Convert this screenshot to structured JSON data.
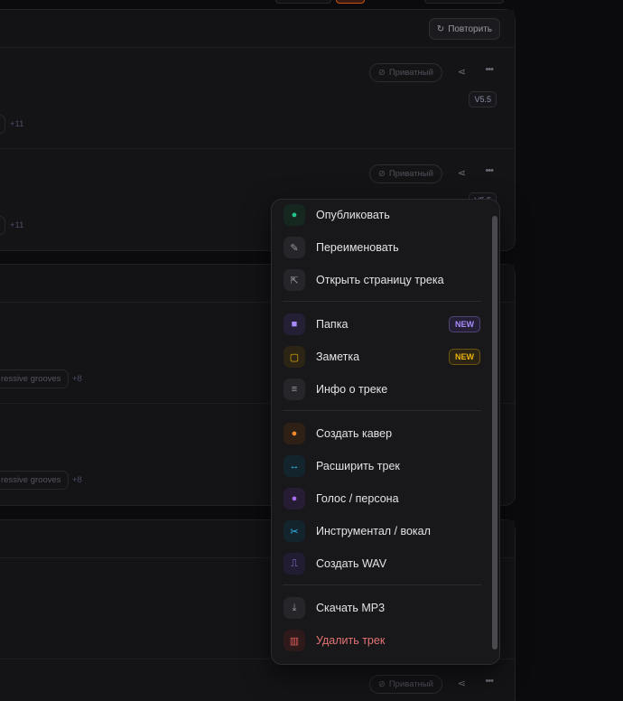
{
  "cards": [
    {
      "retry_label": "Повторить",
      "rows": [
        {
          "privacy": "Приватный",
          "version": "V5.5",
          "more_tags": "+11"
        },
        {
          "privacy": "Приватный",
          "version": "V5.5",
          "more_tags": "+11"
        }
      ]
    },
    {
      "rows": [
        {
          "tag": "ressive grooves",
          "more_tags": "+8"
        },
        {
          "tag": "ressive grooves",
          "more_tags": "+8"
        }
      ]
    },
    {
      "rows": [
        {},
        {
          "privacy": "Приватный"
        }
      ]
    }
  ],
  "menu": {
    "items": [
      {
        "label": "Опубликовать",
        "icon": "globe-icon",
        "color": "#22c58a",
        "bg": "#15271f"
      },
      {
        "label": "Переименовать",
        "icon": "edit-icon",
        "color": "#9a9aa2",
        "bg": "#26262a"
      },
      {
        "label": "Открыть страницу трека",
        "icon": "external-link-icon",
        "color": "#9a9aa2",
        "bg": "#26262a"
      },
      {
        "label": "Папка",
        "icon": "folder-icon",
        "color": "#a78bfa",
        "bg": "#241f35",
        "badge": "NEW"
      },
      {
        "label": "Заметка",
        "icon": "note-icon",
        "color": "#eab308",
        "bg": "#2c2415",
        "badge": "NEW"
      },
      {
        "label": "Инфо о треке",
        "icon": "info-lines-icon",
        "color": "#9a9aa2",
        "bg": "#26262a"
      },
      {
        "label": "Создать кавер",
        "icon": "microphone-icon",
        "color": "#f08a2c",
        "bg": "#2e2015"
      },
      {
        "label": "Расширить трек",
        "icon": "arrows-horizontal-icon",
        "color": "#38bdf8",
        "bg": "#14242d"
      },
      {
        "label": "Голос / персона",
        "icon": "microphone-icon",
        "color": "#a66cf0",
        "bg": "#261c33"
      },
      {
        "label": "Инструментал / вокал",
        "icon": "scissors-icon",
        "color": "#38bdf8",
        "bg": "#14242d"
      },
      {
        "label": "Создать WAV",
        "icon": "waveform-icon",
        "color": "#a78bfa",
        "bg": "#221c33"
      },
      {
        "label": "Скачать MP3",
        "icon": "download-icon",
        "color": "#9a9aa2",
        "bg": "#26262a"
      },
      {
        "label": "Удалить трек",
        "icon": "trash-icon",
        "color": "#e25c5c",
        "bg": "#2e1a1b",
        "danger_text": "#e57373"
      }
    ]
  }
}
